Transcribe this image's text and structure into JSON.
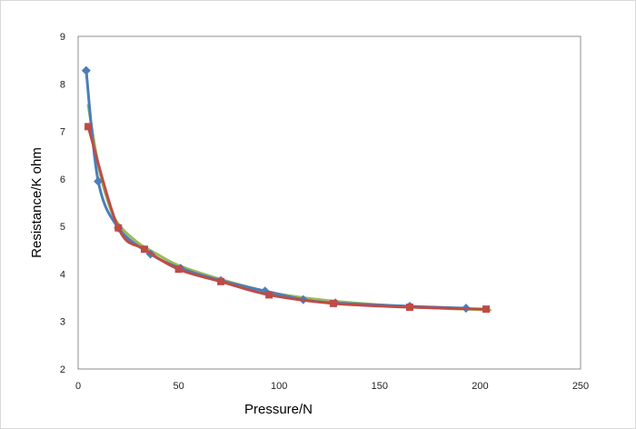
{
  "chart_data": {
    "type": "scatter",
    "title": "",
    "xlabel": "Pressure/N",
    "ylabel": "Resistance/K ohm",
    "xlim": [
      0,
      250
    ],
    "ylim": [
      2,
      9
    ],
    "x_ticks": [
      0,
      50,
      100,
      150,
      200,
      250
    ],
    "y_ticks": [
      2,
      3,
      4,
      5,
      6,
      7,
      8,
      9
    ],
    "grid": false,
    "legend": "none",
    "series": [
      {
        "marker": "diamond",
        "color": "#4a7ebb",
        "points": [
          [
            4,
            8.28
          ],
          [
            10,
            5.95
          ],
          [
            20,
            4.97
          ],
          [
            36,
            4.42
          ],
          [
            51,
            4.12
          ],
          [
            71,
            3.86
          ],
          [
            93,
            3.64
          ],
          [
            112,
            3.46
          ],
          [
            128,
            3.39
          ],
          [
            165,
            3.32
          ],
          [
            193,
            3.28
          ]
        ]
      },
      {
        "marker": "square",
        "color": "#be4b48",
        "points": [
          [
            5,
            7.1
          ],
          [
            20,
            4.97
          ],
          [
            33,
            4.52
          ],
          [
            50,
            4.1
          ],
          [
            71,
            3.84
          ],
          [
            95,
            3.56
          ],
          [
            127,
            3.38
          ],
          [
            165,
            3.3
          ],
          [
            203,
            3.26
          ]
        ]
      },
      {
        "marker": "none",
        "color": "#9bbb59",
        "points": [
          [
            5,
            7.55
          ],
          [
            10,
            6.3
          ],
          [
            15,
            5.5
          ],
          [
            20,
            5.05
          ],
          [
            30,
            4.65
          ],
          [
            40,
            4.4
          ],
          [
            50,
            4.18
          ],
          [
            70,
            3.9
          ],
          [
            95,
            3.62
          ],
          [
            120,
            3.46
          ],
          [
            150,
            3.35
          ],
          [
            180,
            3.28
          ],
          [
            205,
            3.24
          ]
        ]
      }
    ]
  }
}
